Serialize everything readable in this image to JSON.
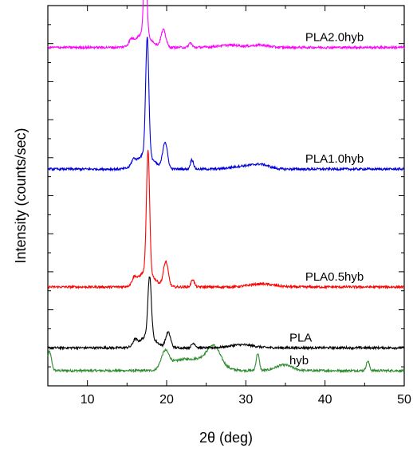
{
  "chart_data": {
    "type": "line",
    "title": "",
    "xlabel": "2θ (deg)",
    "ylabel": "Intensity (counts/sec)",
    "xlim": [
      5,
      50
    ],
    "xticks": [
      10,
      20,
      30,
      40,
      50
    ],
    "y_ticks_labeled": false,
    "grid": false,
    "legend": "none",
    "series": [
      {
        "name": "hyb",
        "color": "#2e8b2e",
        "baseline": 0.04,
        "noise": 0.003,
        "peaks": [
          {
            "x": 5.2,
            "height": 0.05,
            "width": 0.25
          },
          {
            "x": 19.8,
            "height": 0.045,
            "width": 0.5
          },
          {
            "x": 21.5,
            "height": 0.02,
            "width": 1.2
          },
          {
            "x": 24.5,
            "height": 0.03,
            "width": 1.8
          },
          {
            "x": 26.0,
            "height": 0.045,
            "width": 0.8
          },
          {
            "x": 31.5,
            "height": 0.045,
            "width": 0.2
          },
          {
            "x": 34.8,
            "height": 0.015,
            "width": 1.0
          },
          {
            "x": 45.4,
            "height": 0.025,
            "width": 0.2
          }
        ]
      },
      {
        "name": "PLA",
        "color": "#000000",
        "baseline": 0.1,
        "noise": 0.003,
        "peaks": [
          {
            "x": 16.0,
            "height": 0.015,
            "width": 0.25
          },
          {
            "x": 17.6,
            "height": 0.03,
            "width": 1.0
          },
          {
            "x": 17.85,
            "height": 0.16,
            "width": 0.22
          },
          {
            "x": 20.2,
            "height": 0.04,
            "width": 0.3
          },
          {
            "x": 23.4,
            "height": 0.012,
            "width": 0.25
          },
          {
            "x": 29.5,
            "height": 0.008,
            "width": 1.5
          }
        ]
      },
      {
        "name": "PLA0.5hyb",
        "color": "#ff0000",
        "baseline": 0.26,
        "noise": 0.003,
        "peaks": [
          {
            "x": 15.9,
            "height": 0.015,
            "width": 0.25
          },
          {
            "x": 17.4,
            "height": 0.04,
            "width": 1.0
          },
          {
            "x": 17.65,
            "height": 0.32,
            "width": 0.2
          },
          {
            "x": 19.9,
            "height": 0.065,
            "width": 0.3
          },
          {
            "x": 23.3,
            "height": 0.02,
            "width": 0.2
          },
          {
            "x": 32.0,
            "height": 0.008,
            "width": 1.5
          }
        ]
      },
      {
        "name": "PLA1.0hyb",
        "color": "#0000dd",
        "baseline": 0.57,
        "noise": 0.003,
        "peaks": [
          {
            "x": 15.8,
            "height": 0.015,
            "width": 0.25
          },
          {
            "x": 17.3,
            "height": 0.04,
            "width": 1.0
          },
          {
            "x": 17.55,
            "height": 0.31,
            "width": 0.2
          },
          {
            "x": 19.8,
            "height": 0.07,
            "width": 0.3
          },
          {
            "x": 23.2,
            "height": 0.025,
            "width": 0.2
          },
          {
            "x": 29.8,
            "height": 0.008,
            "width": 1.5
          },
          {
            "x": 32.0,
            "height": 0.01,
            "width": 1.0
          }
        ]
      },
      {
        "name": "PLA2.0hyb",
        "color": "#ff00ff",
        "baseline": 0.89,
        "noise": 0.003,
        "peaks": [
          {
            "x": 15.5,
            "height": 0.012,
            "width": 0.25
          },
          {
            "x": 17.0,
            "height": 0.035,
            "width": 1.0
          },
          {
            "x": 17.3,
            "height": 0.19,
            "width": 0.2
          },
          {
            "x": 19.6,
            "height": 0.045,
            "width": 0.3
          },
          {
            "x": 23.0,
            "height": 0.012,
            "width": 0.2
          },
          {
            "x": 28.0,
            "height": 0.006,
            "width": 1.5
          },
          {
            "x": 31.8,
            "height": 0.006,
            "width": 1.0
          }
        ]
      }
    ],
    "annotations": [
      {
        "text": "PLA2.0hyb",
        "series": "PLA2.0hyb",
        "x": 37.5
      },
      {
        "text": "PLA1.0hyb",
        "series": "PLA1.0hyb",
        "x": 37.5
      },
      {
        "text": "PLA0.5hyb",
        "series": "PLA0.5hyb",
        "x": 37.5
      },
      {
        "text": "PLA",
        "series": "PLA",
        "x": 35.5
      },
      {
        "text": "hyb",
        "series": "hyb",
        "x": 35.5
      }
    ]
  }
}
